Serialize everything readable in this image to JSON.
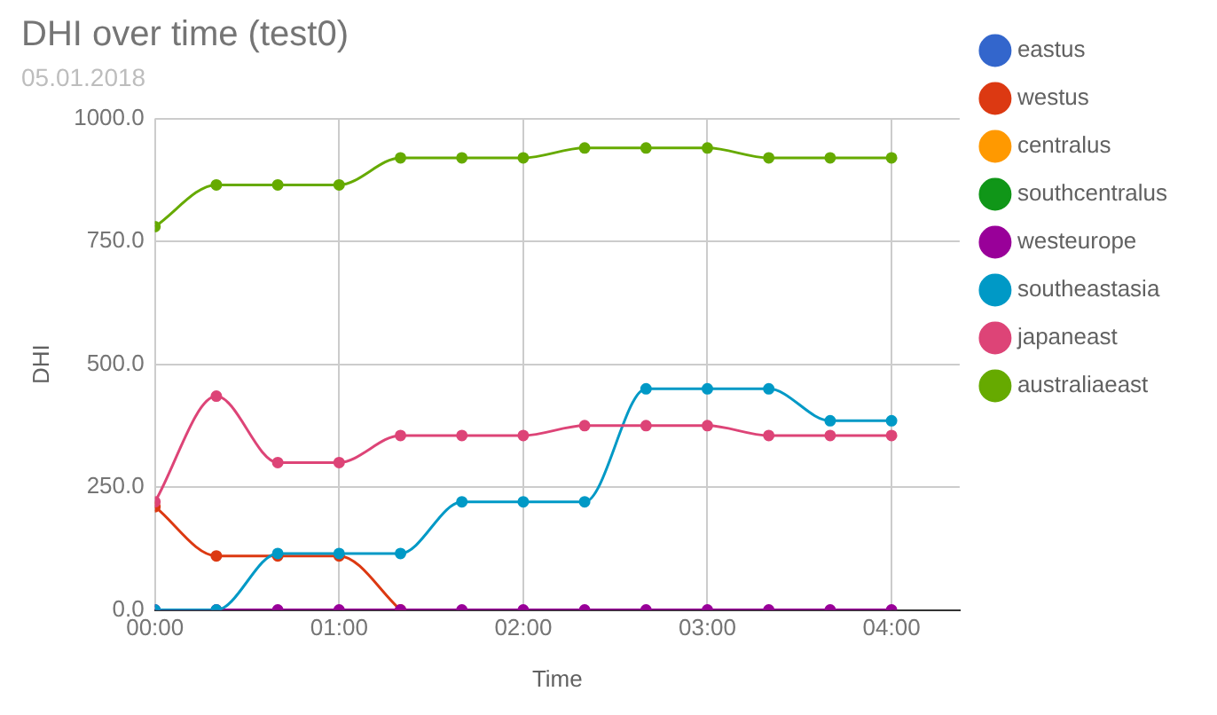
{
  "chart_data": {
    "type": "line",
    "title": "DHI over time (test0)",
    "subtitle": "05.01.2018",
    "xlabel": "Time",
    "ylabel": "DHI",
    "x": [
      0,
      0.3333,
      0.6667,
      1,
      1.3333,
      1.6667,
      2,
      2.3333,
      2.6667,
      3,
      3.3333,
      3.6667,
      4
    ],
    "xlim": [
      0,
      4.37
    ],
    "xticks": [
      {
        "value": 0,
        "label": "00:00"
      },
      {
        "value": 1,
        "label": "01:00"
      },
      {
        "value": 2,
        "label": "02:00"
      },
      {
        "value": 3,
        "label": "03:00"
      },
      {
        "value": 4,
        "label": "04:00"
      }
    ],
    "ylim": [
      0,
      1000
    ],
    "yticks": [
      {
        "value": 0,
        "label": "0.0"
      },
      {
        "value": 250,
        "label": "250.0"
      },
      {
        "value": 500,
        "label": "500.0"
      },
      {
        "value": 750,
        "label": "750.0"
      },
      {
        "value": 1000,
        "label": "1000.0"
      }
    ],
    "grid": true,
    "legend": "right",
    "marker": "circle",
    "line_style": "solid",
    "series": [
      {
        "name": "eastus",
        "color": "#3366cc",
        "values": [
          null,
          null,
          null,
          null,
          null,
          null,
          null,
          null,
          null,
          null,
          null,
          null,
          null
        ]
      },
      {
        "name": "westus",
        "color": "#dc3912",
        "values": [
          210,
          110,
          110,
          110,
          0,
          null,
          null,
          null,
          null,
          null,
          null,
          null,
          null
        ]
      },
      {
        "name": "centralus",
        "color": "#ff9900",
        "values": [
          null,
          null,
          null,
          null,
          null,
          null,
          null,
          null,
          null,
          null,
          null,
          null,
          null
        ]
      },
      {
        "name": "southcentralus",
        "color": "#109618",
        "values": [
          null,
          null,
          null,
          null,
          null,
          null,
          null,
          null,
          null,
          null,
          null,
          null,
          null
        ]
      },
      {
        "name": "westeurope",
        "color": "#990099",
        "values": [
          0,
          0,
          0,
          0,
          0,
          0,
          0,
          0,
          0,
          0,
          0,
          0,
          0
        ]
      },
      {
        "name": "southeastasia",
        "color": "#0099c6",
        "values": [
          0,
          0,
          115,
          115,
          115,
          220,
          220,
          220,
          450,
          450,
          450,
          385,
          385
        ]
      },
      {
        "name": "japaneast",
        "color": "#dd4477",
        "values": [
          220,
          435,
          300,
          300,
          355,
          355,
          355,
          375,
          375,
          375,
          355,
          355,
          355
        ]
      },
      {
        "name": "australiaeast",
        "color": "#66aa00",
        "values": [
          780,
          865,
          865,
          865,
          920,
          920,
          920,
          940,
          940,
          940,
          920,
          920,
          920
        ]
      }
    ]
  }
}
